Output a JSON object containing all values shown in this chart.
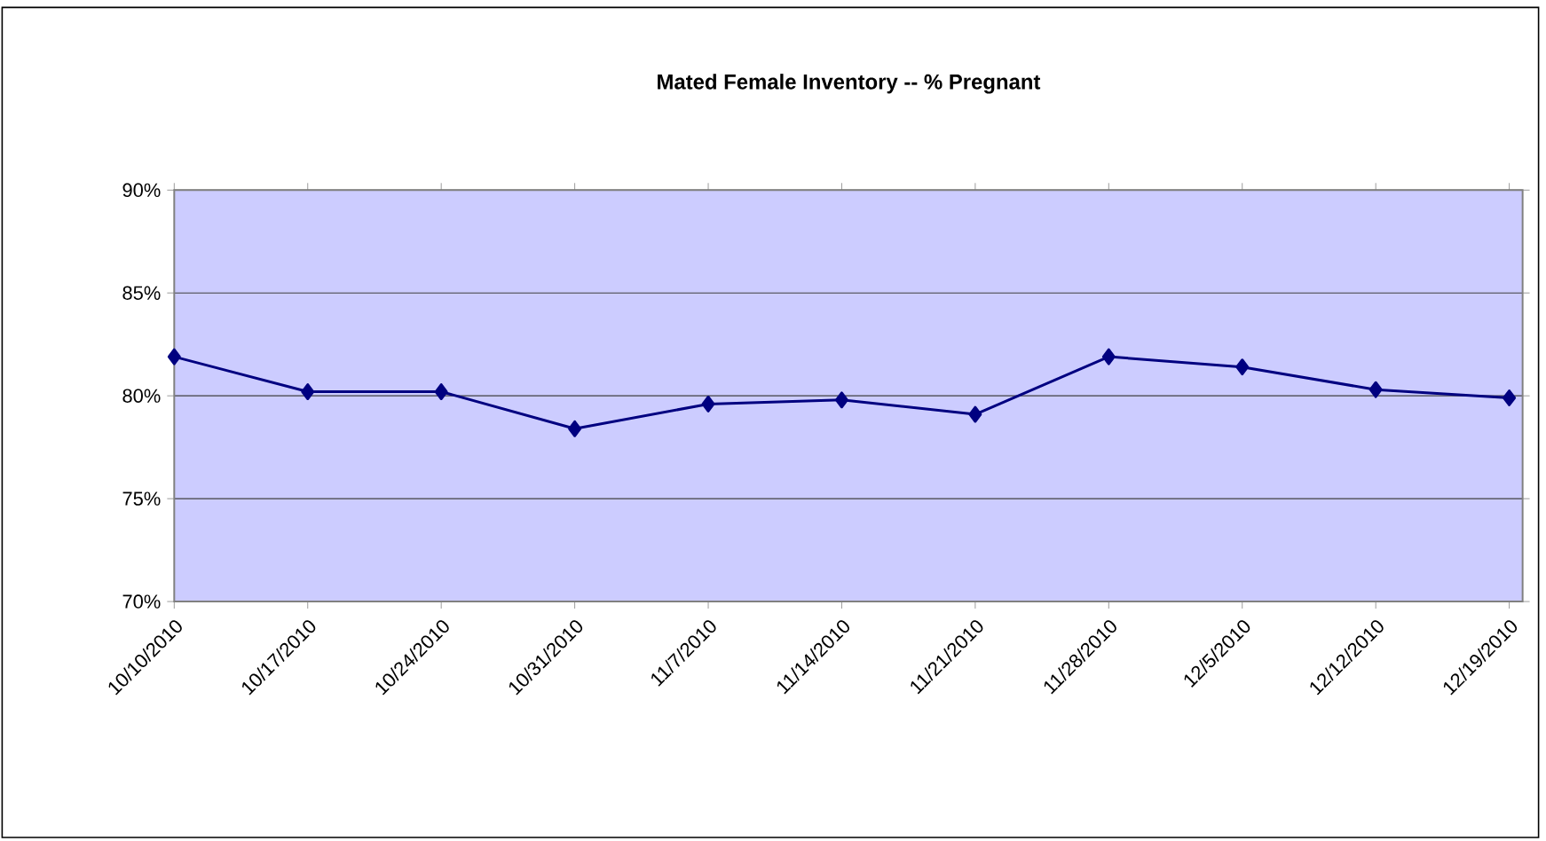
{
  "chart_data": {
    "type": "line",
    "title": "Mated Female Inventory -- % Pregnant",
    "categories": [
      "10/10/2010",
      "10/17/2010",
      "10/24/2010",
      "10/31/2010",
      "11/7/2010",
      "11/14/2010",
      "11/21/2010",
      "11/28/2010",
      "12/5/2010",
      "12/12/2010",
      "12/19/2010"
    ],
    "series": [
      {
        "color": "#000080",
        "values": [
          81.9,
          80.2,
          80.2,
          78.4,
          79.6,
          79.8,
          79.1,
          81.9,
          81.4,
          80.3,
          79.9
        ]
      }
    ],
    "ylim": [
      70,
      90
    ],
    "yticks": [
      {
        "value": 70,
        "label": "70%"
      },
      {
        "value": 75,
        "label": "75%"
      },
      {
        "value": 80,
        "label": "80%"
      },
      {
        "value": 85,
        "label": "85%"
      },
      {
        "value": 90,
        "label": "90%"
      }
    ],
    "grid": "y",
    "marker": "diamond",
    "line_style": "solid"
  }
}
